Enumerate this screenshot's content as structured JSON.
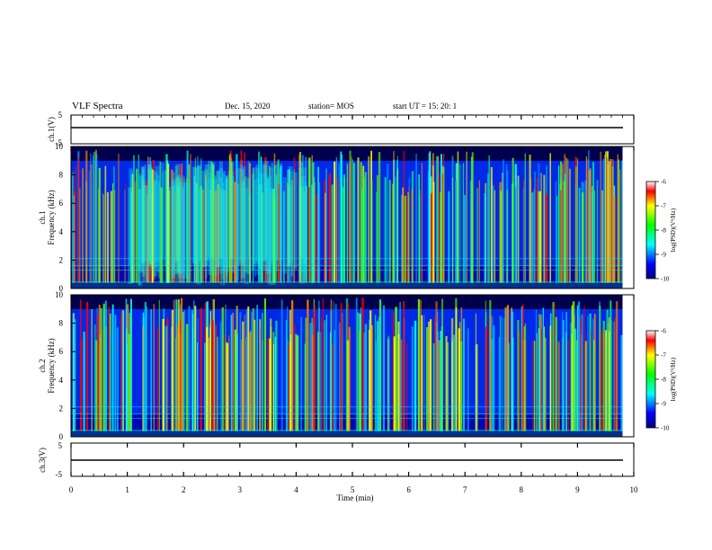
{
  "header": {
    "title": "VLF Spectra",
    "date": "Dec. 15, 2020",
    "station": "station= MOS",
    "start": "start UT =   15: 20: 1"
  },
  "chart_data": [
    {
      "type": "line",
      "panel": "ch1-waveform",
      "ylabel": "ch.1(V)",
      "ylim": [
        -5,
        5
      ],
      "yticks": [
        "5",
        "-5"
      ],
      "xlim": [
        0,
        10
      ],
      "series": [
        {
          "x": [
            0,
            9.8
          ],
          "values": [
            0,
            0
          ]
        }
      ]
    },
    {
      "type": "heatmap",
      "panel": "ch1-spectrogram",
      "ylabel_channel": "ch.1",
      "ylabel": "Frequency (kHz)",
      "ylim": [
        0,
        10
      ],
      "yticks": [
        "0",
        "2",
        "4",
        "6",
        "8",
        "10"
      ],
      "xlim": [
        0,
        10
      ],
      "data_extent_min": 9.8,
      "colorbar": {
        "label": "log(PSD)(V²/Hz)",
        "range": [
          -10,
          -6
        ],
        "ticks": [
          "-6",
          "-7",
          "-8",
          "-9",
          "-10"
        ]
      }
    },
    {
      "type": "heatmap",
      "panel": "ch2-spectrogram",
      "ylabel_channel": "ch.2",
      "ylabel": "Frequency (kHz)",
      "ylim": [
        0,
        10
      ],
      "yticks": [
        "0",
        "2",
        "4",
        "6",
        "8",
        "10"
      ],
      "xlim": [
        0,
        10
      ],
      "data_extent_min": 9.8,
      "colorbar": {
        "label": "log(PSD)(V²/Hz)",
        "range": [
          -10,
          -6
        ],
        "ticks": [
          "-6",
          "-7",
          "-8",
          "-9",
          "-10"
        ]
      }
    },
    {
      "type": "line",
      "panel": "ch3-waveform",
      "ylabel": "ch.3(V)",
      "ylim": [
        -5,
        5
      ],
      "yticks": [
        "5",
        "-5"
      ],
      "xlim": [
        0,
        10
      ],
      "series": [
        {
          "x": [
            0,
            9.8
          ],
          "values": [
            0,
            0
          ]
        }
      ]
    }
  ],
  "xaxis": {
    "label": "Time (min)",
    "ticks": [
      "0",
      "1",
      "2",
      "3",
      "4",
      "5",
      "6",
      "7",
      "8",
      "9",
      "10"
    ]
  },
  "colormap": [
    "#000080",
    "#0000ff",
    "#00a0ff",
    "#00ffff",
    "#00ff80",
    "#60ff00",
    "#ffff00",
    "#ff8000",
    "#ff0000",
    "#ffffff"
  ]
}
